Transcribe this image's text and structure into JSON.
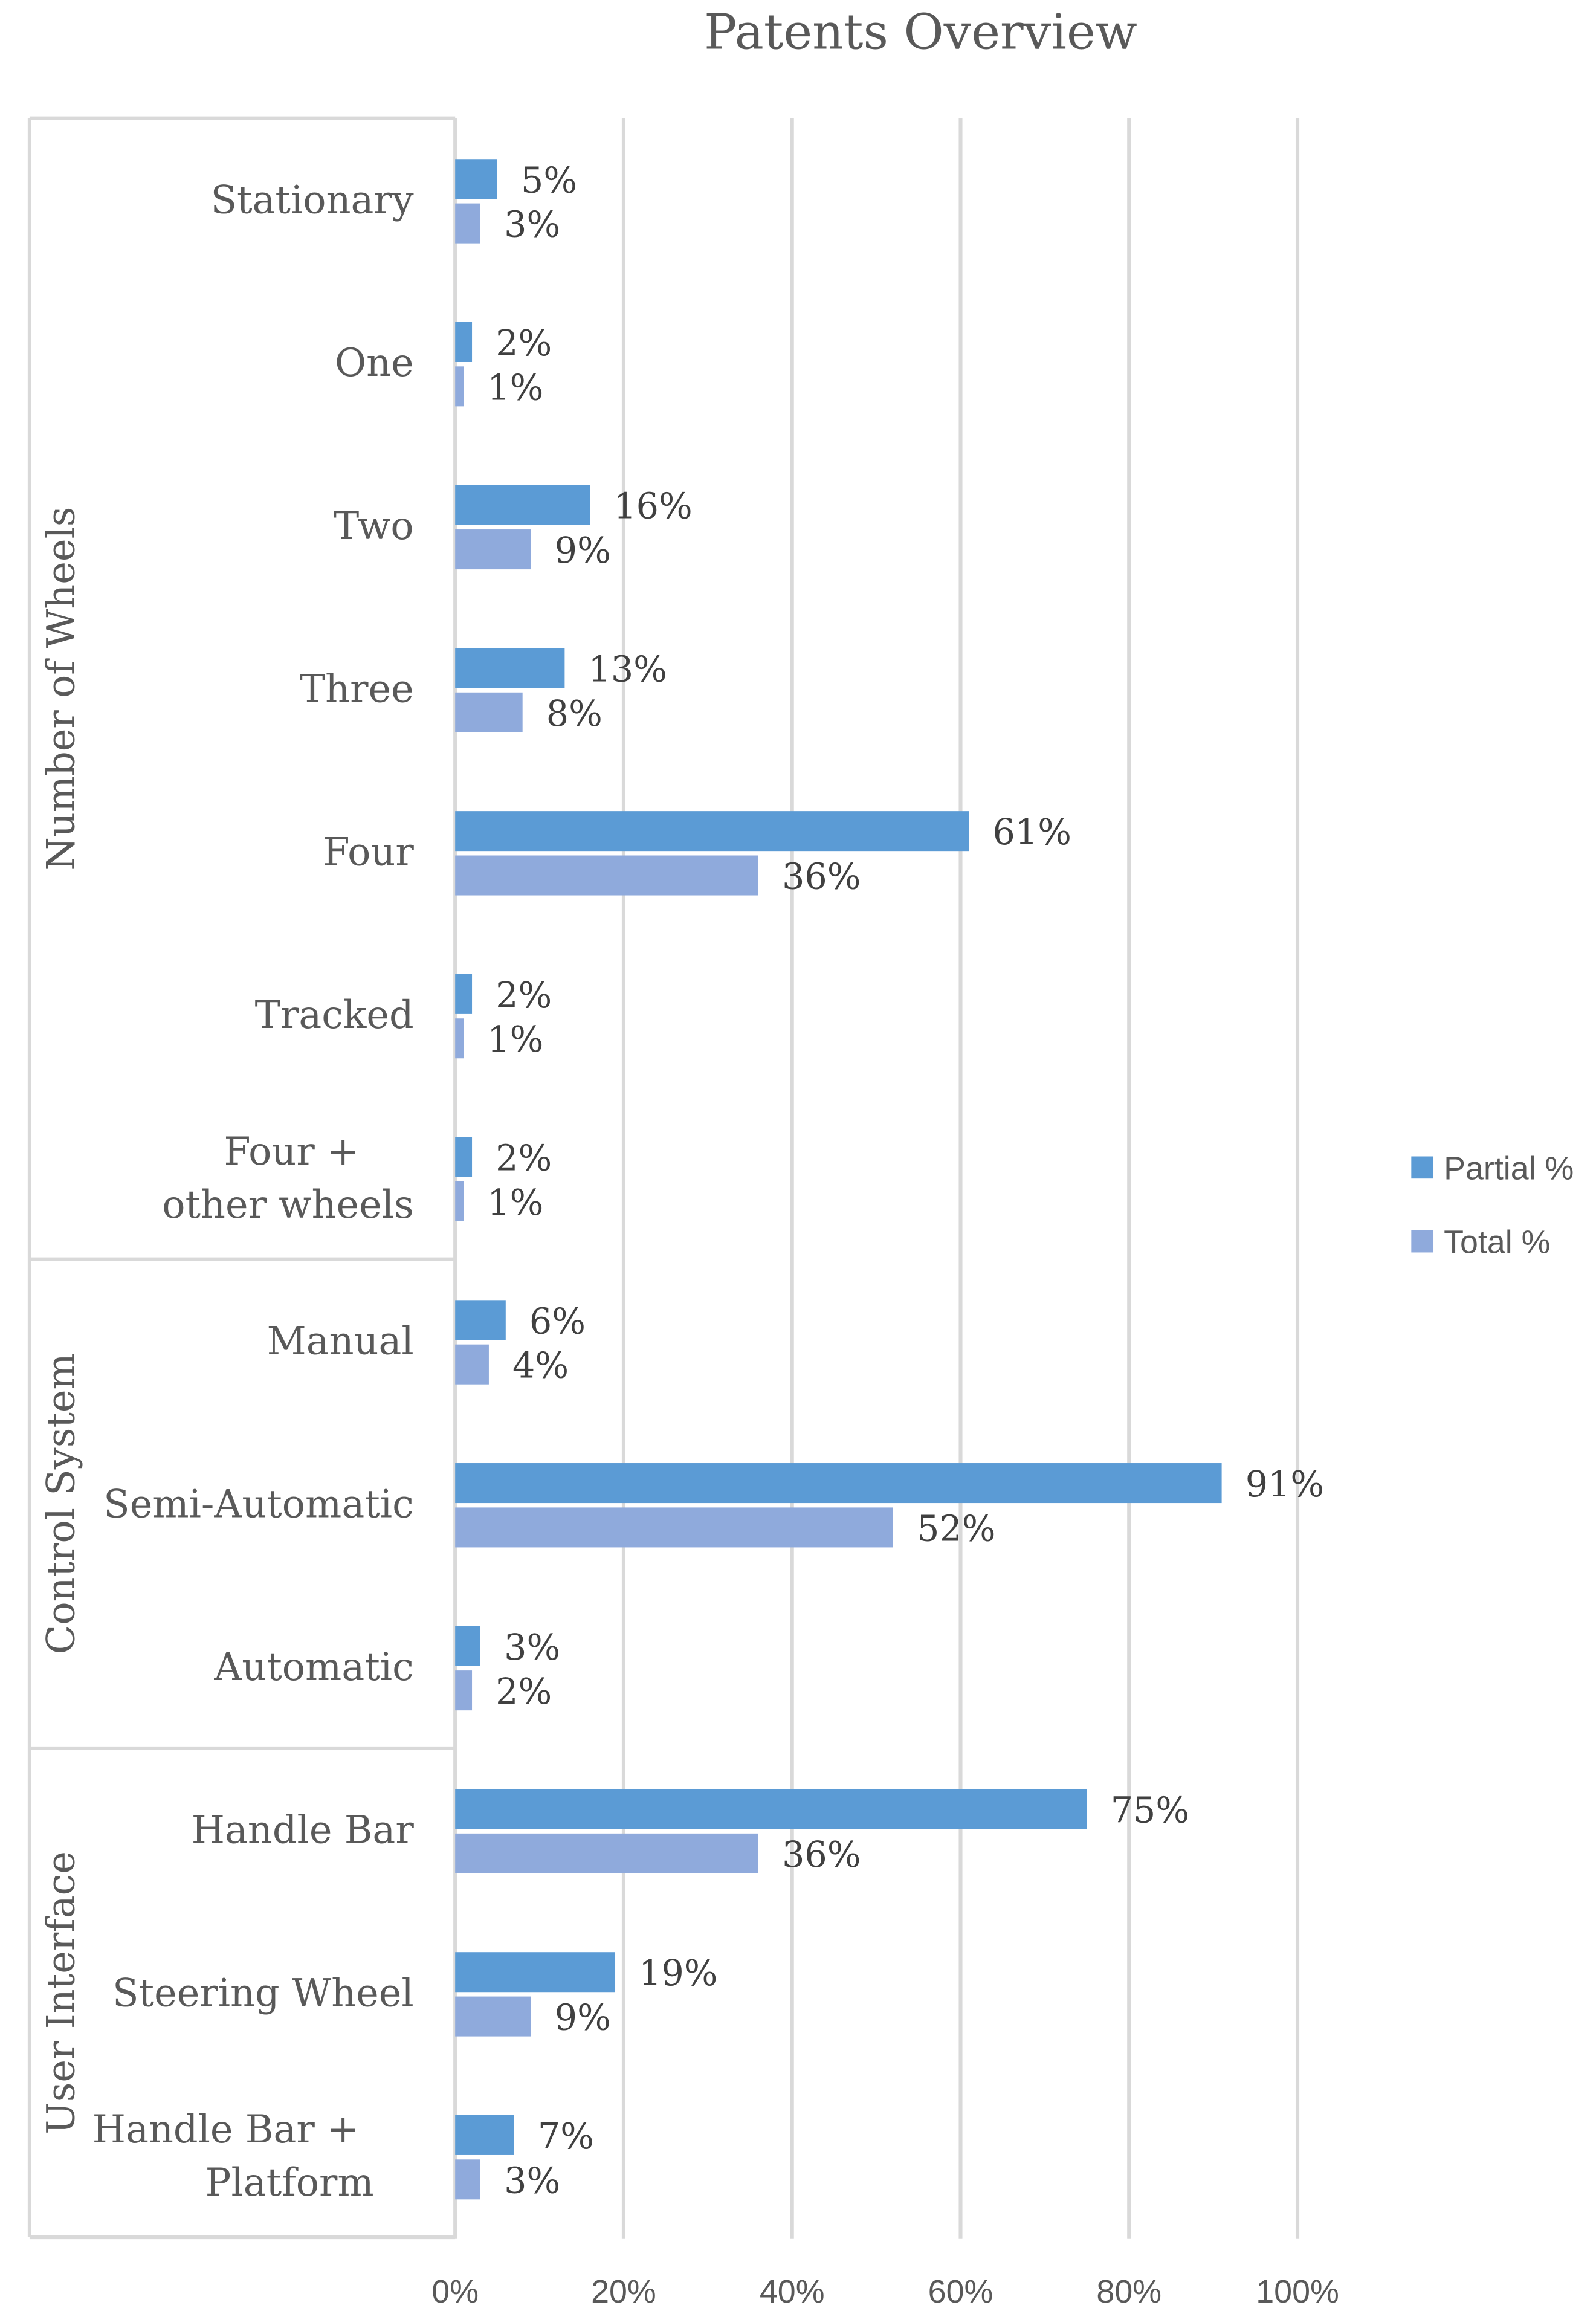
{
  "chart_data": {
    "type": "bar",
    "orientation": "horizontal",
    "title": "Patents Overview",
    "groups": [
      {
        "name": "Number of Wheels",
        "categories": [
          [
            "Stationary"
          ],
          [
            "One"
          ],
          [
            "Two"
          ],
          [
            "Three"
          ],
          [
            "Four"
          ],
          [
            "Tracked"
          ],
          [
            "Four +",
            "other wheels"
          ]
        ]
      },
      {
        "name": "Control System",
        "categories": [
          [
            "Manual"
          ],
          [
            "Semi-Automatic"
          ],
          [
            "Automatic"
          ]
        ]
      },
      {
        "name": "User Interface",
        "categories": [
          [
            "Handle Bar"
          ],
          [
            "Steering Wheel"
          ],
          [
            "Handle Bar +",
            "Platform"
          ]
        ]
      }
    ],
    "series": [
      {
        "name": "Partial %",
        "color": "#5B9BD5",
        "values": [
          5,
          2,
          16,
          13,
          61,
          2,
          2,
          6,
          91,
          3,
          75,
          19,
          7
        ],
        "labels": [
          "5%",
          "2%",
          "16%",
          "13%",
          "61%",
          "2%",
          "2%",
          "6%",
          "91%",
          "3%",
          "75%",
          "19%",
          "7%"
        ]
      },
      {
        "name": "Total %",
        "color": "#8FAADC",
        "values": [
          3,
          1,
          9,
          8,
          36,
          1,
          1,
          4,
          52,
          2,
          36,
          9,
          3
        ],
        "labels": [
          "3%",
          "1%",
          "9%",
          "8%",
          "36%",
          "1%",
          "1%",
          "4%",
          "52%",
          "2%",
          "36%",
          "9%",
          "3%"
        ]
      }
    ],
    "xlim": [
      0,
      100
    ],
    "xticks": [
      "0%",
      "20%",
      "40%",
      "60%",
      "80%",
      "100%"
    ],
    "grid": true,
    "legend": "right"
  }
}
